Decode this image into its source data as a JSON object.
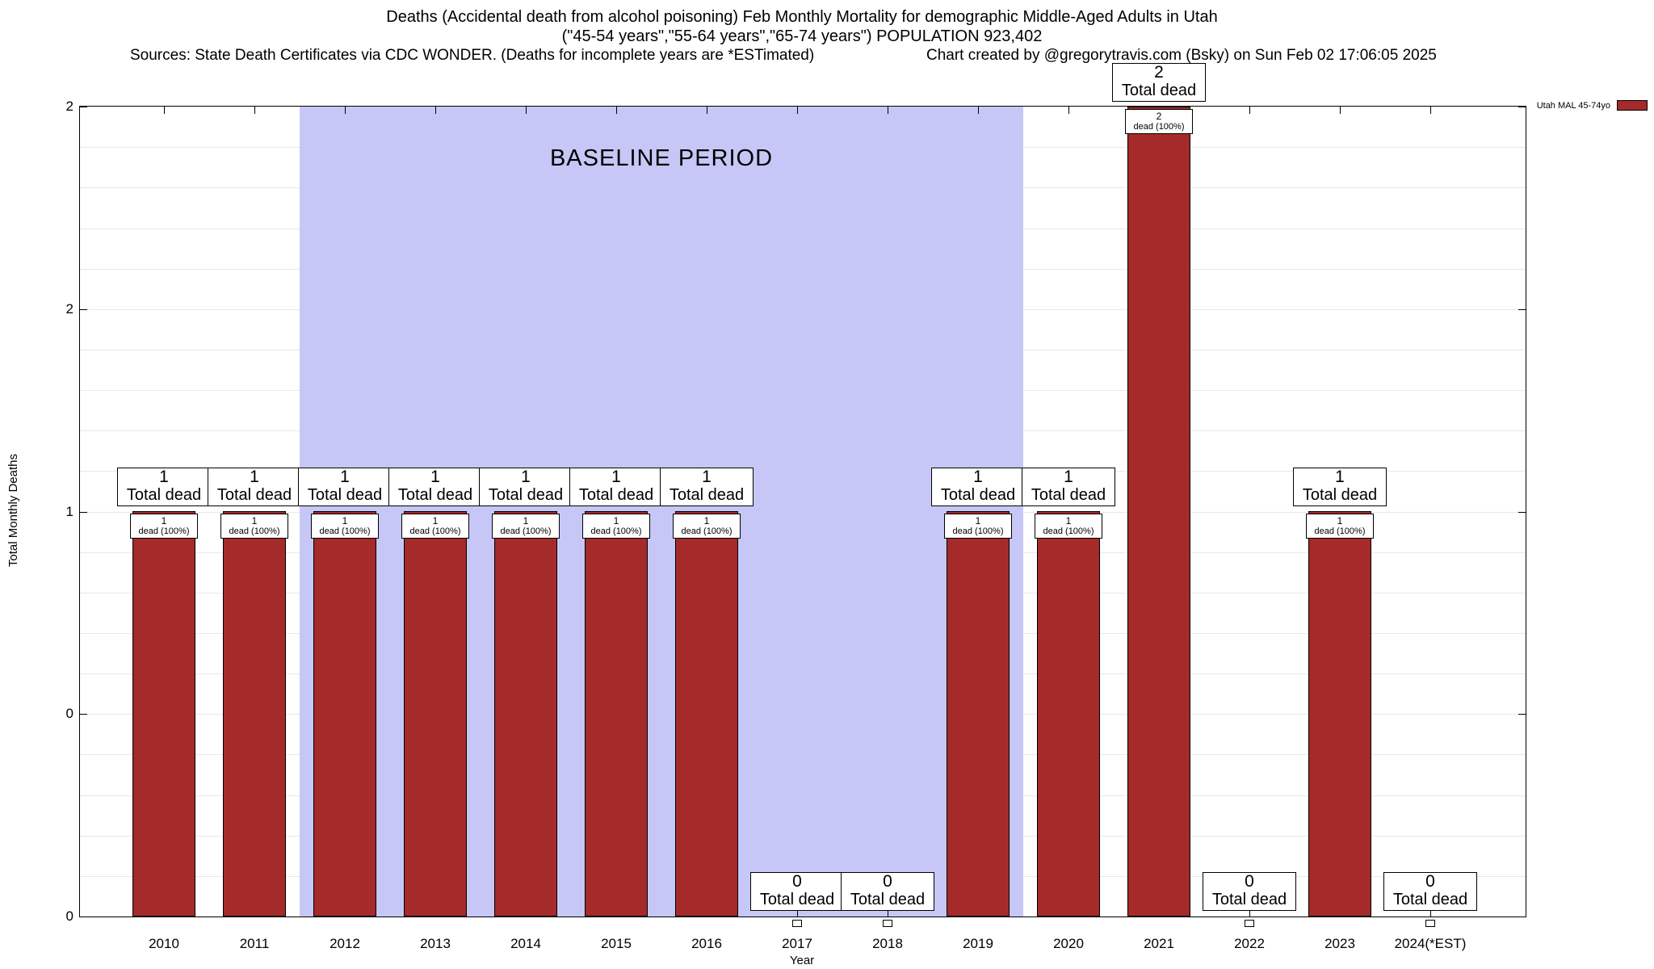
{
  "chart_data": {
    "type": "bar",
    "title": "Deaths (Accidental death from alcohol poisoning) Feb Monthly Mortality for demographic Middle-Aged Adults in Utah",
    "subtitle": "(\"45-54 years\",\"55-64 years\",\"65-74 years\") POPULATION 923,402",
    "sources_note": "Sources: State Death Certificates via CDC WONDER. (Deaths for incomplete years are *ESTimated)",
    "credit_note": "Chart created by @gregorytravis.com (Bsky) on Sun Feb 02 17:06:05 2025",
    "xlabel": "Year",
    "ylabel": "Total Monthly Deaths",
    "ylim": [
      0,
      2
    ],
    "y_tick_values": [
      0,
      0.5,
      1,
      1.5,
      2
    ],
    "y_tick_labels": [
      "0",
      "0",
      "1",
      "2",
      "2"
    ],
    "categories": [
      "2010",
      "2011",
      "2012",
      "2013",
      "2014",
      "2015",
      "2016",
      "2017",
      "2018",
      "2019",
      "2020",
      "2021",
      "2022",
      "2023",
      "2024(*EST)"
    ],
    "series": [
      {
        "name": "Utah MAL 45-74yo",
        "values": [
          1,
          1,
          1,
          1,
          1,
          1,
          1,
          0,
          0,
          1,
          1,
          2,
          0,
          1,
          0
        ]
      }
    ],
    "bar_color": "#a52a2a",
    "grid": true,
    "legend_position": "top-right",
    "annotations": {
      "total_label": "Total dead",
      "inner_label": "dead (100%)",
      "baseline": {
        "label": "BASELINE PERIOD",
        "from": "2012",
        "to": "2019",
        "color": "#c7c7f7"
      }
    }
  }
}
